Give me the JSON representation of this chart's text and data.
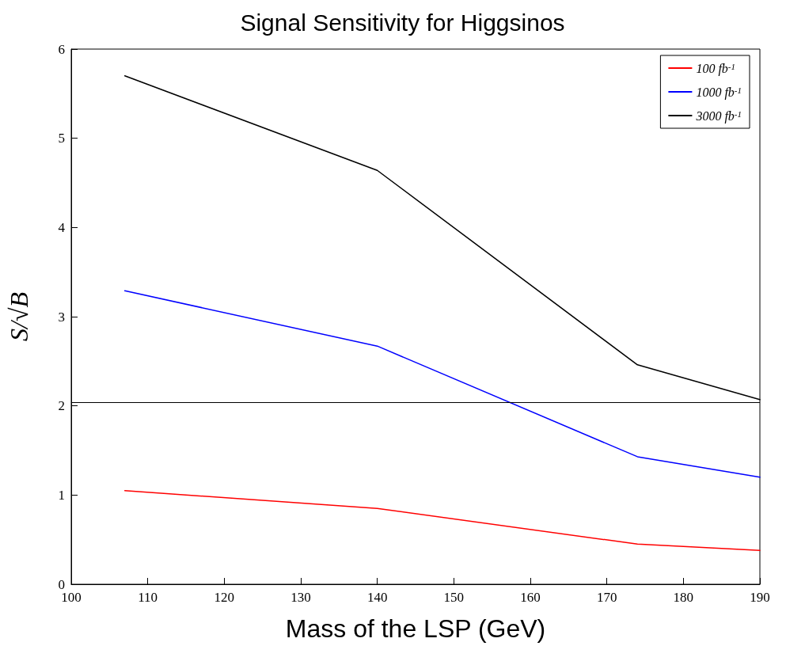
{
  "chart_data": {
    "type": "line",
    "title": "Signal Sensitivity for Higgsinos",
    "xlabel": "Mass of the LSP (GeV)",
    "ylabel": "S/√B",
    "x": [
      107,
      140,
      174,
      190
    ],
    "series": [
      {
        "name": "100 fb$^{-1}$",
        "color": "#ff0000",
        "values": [
          1.05,
          0.85,
          0.45,
          0.38
        ]
      },
      {
        "name": "1000 fb$^{-1}$",
        "color": "#0000ff",
        "values": [
          3.29,
          2.67,
          1.43,
          1.2
        ]
      },
      {
        "name": "3000 fb$^{-1}$",
        "color": "#000000",
        "values": [
          5.7,
          4.64,
          2.46,
          2.07
        ]
      }
    ],
    "xlim": [
      100,
      190
    ],
    "xticks": [
      100,
      110,
      120,
      130,
      140,
      150,
      160,
      170,
      180,
      190
    ],
    "ylim": [
      0,
      6
    ],
    "yticks": [
      0,
      1,
      2,
      3,
      4,
      5,
      6
    ],
    "ref_lines": [
      {
        "axis": "y",
        "value": 2.04,
        "color": "#000000"
      }
    ],
    "grid": false,
    "legend": "top right",
    "marker": "none",
    "line_style": "solid"
  }
}
